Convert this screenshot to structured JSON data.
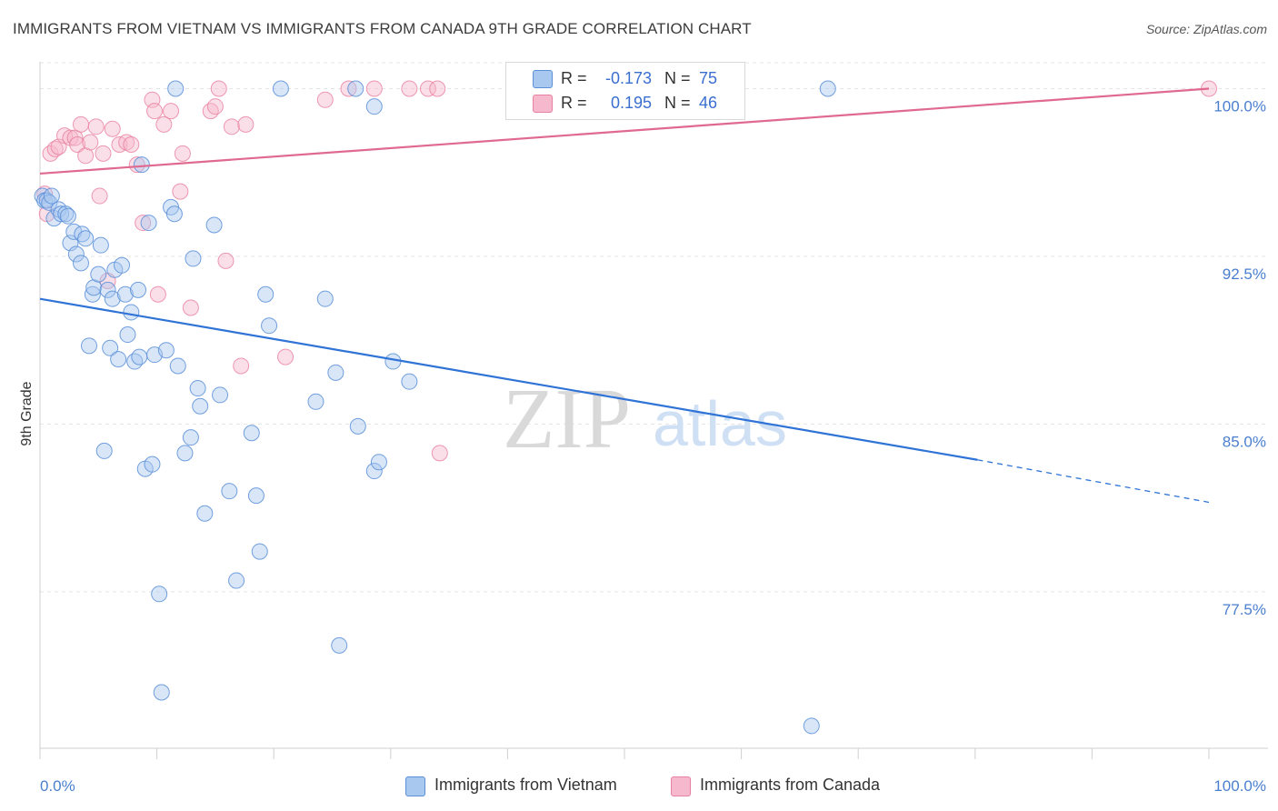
{
  "header": {
    "title": "IMMIGRANTS FROM VIETNAM VS IMMIGRANTS FROM CANADA 9TH GRADE CORRELATION CHART",
    "source": "Source: ZipAtlas.com"
  },
  "watermark": {
    "zip": "ZIP",
    "atlas": "atlas"
  },
  "legend_top": {
    "rows": [
      {
        "r_label": "R =",
        "r_value": "-0.173",
        "n_label": "N =",
        "n_value": "75"
      },
      {
        "r_label": "R =",
        "r_value": "0.195",
        "n_label": "N =",
        "n_value": "46"
      }
    ]
  },
  "legend_bottom": {
    "items": [
      {
        "label": "Immigrants from Vietnam"
      },
      {
        "label": "Immigrants from Canada"
      }
    ]
  },
  "colors": {
    "vietnam_fill": "#a8c8f0",
    "vietnam_stroke": "#5b8fd8",
    "vietnam_line": "#2f73d6",
    "canada_fill": "#f6b8cc",
    "canada_stroke": "#e8809f",
    "canada_line": "#e0698f",
    "tick_label": "#4a7fcf",
    "grid": "#e4e4e4"
  },
  "chart_data": {
    "type": "scatter",
    "title": "IMMIGRANTS FROM VIETNAM VS IMMIGRANTS FROM CANADA 9TH GRADE CORRELATION CHART",
    "xlabel": "",
    "ylabel": "9th Grade",
    "xlim": [
      0,
      100
    ],
    "ylim": [
      70.5,
      101.2
    ],
    "x_tick_labels": [
      "0.0%",
      "100.0%"
    ],
    "y_ticks": [
      77.5,
      85.0,
      92.5,
      100.0
    ],
    "y_tick_labels": [
      "77.5%",
      "85.0%",
      "92.5%",
      "100.0%"
    ],
    "grid": true,
    "legend": "bottom-center",
    "series": [
      {
        "name": "Immigrants from Vietnam",
        "r": -0.173,
        "n": 75,
        "trend": {
          "x0": 0,
          "y0": 90.6,
          "x1": 80.2,
          "y1": 83.4,
          "dashed_to_x": 100,
          "dashed_to_y": 81.5
        },
        "points": [
          [
            0.2,
            95.2
          ],
          [
            0.4,
            95.0
          ],
          [
            0.6,
            95.0
          ],
          [
            0.8,
            94.9
          ],
          [
            1.0,
            95.2
          ],
          [
            1.2,
            94.2
          ],
          [
            1.6,
            94.6
          ],
          [
            1.8,
            94.4
          ],
          [
            2.2,
            94.4
          ],
          [
            2.4,
            94.3
          ],
          [
            2.6,
            93.1
          ],
          [
            2.9,
            93.6
          ],
          [
            3.1,
            92.6
          ],
          [
            3.5,
            92.2
          ],
          [
            3.6,
            93.5
          ],
          [
            3.9,
            93.3
          ],
          [
            4.2,
            88.5
          ],
          [
            4.5,
            90.8
          ],
          [
            4.6,
            91.1
          ],
          [
            5.0,
            91.7
          ],
          [
            5.2,
            93.0
          ],
          [
            5.5,
            83.8
          ],
          [
            5.8,
            91.0
          ],
          [
            6.0,
            88.4
          ],
          [
            6.2,
            90.6
          ],
          [
            6.4,
            91.9
          ],
          [
            6.7,
            87.9
          ],
          [
            7.0,
            92.1
          ],
          [
            7.3,
            90.8
          ],
          [
            7.5,
            89.0
          ],
          [
            7.8,
            90.0
          ],
          [
            8.1,
            87.8
          ],
          [
            8.4,
            91.0
          ],
          [
            8.5,
            88.0
          ],
          [
            8.7,
            96.6
          ],
          [
            9.0,
            83.0
          ],
          [
            9.3,
            94.0
          ],
          [
            9.6,
            83.2
          ],
          [
            9.8,
            88.1
          ],
          [
            10.2,
            77.4
          ],
          [
            10.4,
            73.0
          ],
          [
            10.8,
            88.3
          ],
          [
            11.2,
            94.7
          ],
          [
            11.5,
            94.4
          ],
          [
            11.8,
            87.6
          ],
          [
            12.4,
            83.7
          ],
          [
            12.9,
            84.4
          ],
          [
            13.1,
            92.4
          ],
          [
            13.5,
            86.6
          ],
          [
            13.7,
            85.8
          ],
          [
            14.1,
            81.0
          ],
          [
            14.9,
            93.9
          ],
          [
            15.4,
            86.3
          ],
          [
            16.2,
            82.0
          ],
          [
            18.1,
            84.6
          ],
          [
            18.5,
            81.8
          ],
          [
            18.8,
            79.3
          ],
          [
            19.3,
            90.8
          ],
          [
            19.6,
            89.4
          ],
          [
            16.8,
            78.0
          ],
          [
            11.6,
            100.0
          ],
          [
            20.6,
            100.0
          ],
          [
            23.6,
            86.0
          ],
          [
            24.4,
            90.6
          ],
          [
            25.3,
            87.3
          ],
          [
            25.6,
            75.1
          ],
          [
            27.0,
            100.0
          ],
          [
            27.2,
            84.9
          ],
          [
            28.6,
            99.2
          ],
          [
            28.6,
            82.9
          ],
          [
            29.0,
            83.3
          ],
          [
            30.2,
            87.8
          ],
          [
            31.6,
            86.9
          ],
          [
            66.0,
            71.5
          ],
          [
            67.4,
            100.0
          ]
        ]
      },
      {
        "name": "Immigrants from Canada",
        "r": 0.195,
        "n": 46,
        "trend": {
          "x0": 0,
          "y0": 96.2,
          "x1": 100,
          "y1": 100.0
        },
        "points": [
          [
            0.4,
            95.3
          ],
          [
            0.6,
            94.4
          ],
          [
            0.9,
            97.1
          ],
          [
            1.3,
            97.3
          ],
          [
            1.6,
            97.4
          ],
          [
            2.1,
            97.9
          ],
          [
            2.6,
            97.8
          ],
          [
            3.0,
            97.8
          ],
          [
            3.2,
            97.5
          ],
          [
            3.5,
            98.4
          ],
          [
            3.9,
            97.0
          ],
          [
            4.3,
            97.6
          ],
          [
            4.8,
            98.3
          ],
          [
            5.1,
            95.2
          ],
          [
            5.4,
            97.1
          ],
          [
            5.8,
            91.4
          ],
          [
            6.2,
            98.2
          ],
          [
            6.8,
            97.5
          ],
          [
            7.4,
            97.6
          ],
          [
            7.8,
            97.5
          ],
          [
            8.3,
            96.6
          ],
          [
            8.8,
            94.0
          ],
          [
            9.6,
            99.5
          ],
          [
            9.8,
            99.0
          ],
          [
            10.1,
            90.8
          ],
          [
            10.6,
            98.4
          ],
          [
            11.2,
            99.0
          ],
          [
            12.0,
            95.4
          ],
          [
            12.2,
            97.1
          ],
          [
            12.9,
            90.2
          ],
          [
            14.6,
            99.0
          ],
          [
            15.0,
            99.2
          ],
          [
            15.3,
            100.0
          ],
          [
            15.9,
            92.3
          ],
          [
            16.4,
            98.3
          ],
          [
            17.2,
            87.6
          ],
          [
            17.6,
            98.4
          ],
          [
            21.0,
            88.0
          ],
          [
            24.4,
            99.5
          ],
          [
            26.4,
            100.0
          ],
          [
            28.6,
            100.0
          ],
          [
            31.6,
            100.0
          ],
          [
            33.2,
            100.0
          ],
          [
            34.0,
            100.0
          ],
          [
            34.2,
            83.7
          ],
          [
            100.0,
            100.0
          ]
        ]
      }
    ]
  }
}
